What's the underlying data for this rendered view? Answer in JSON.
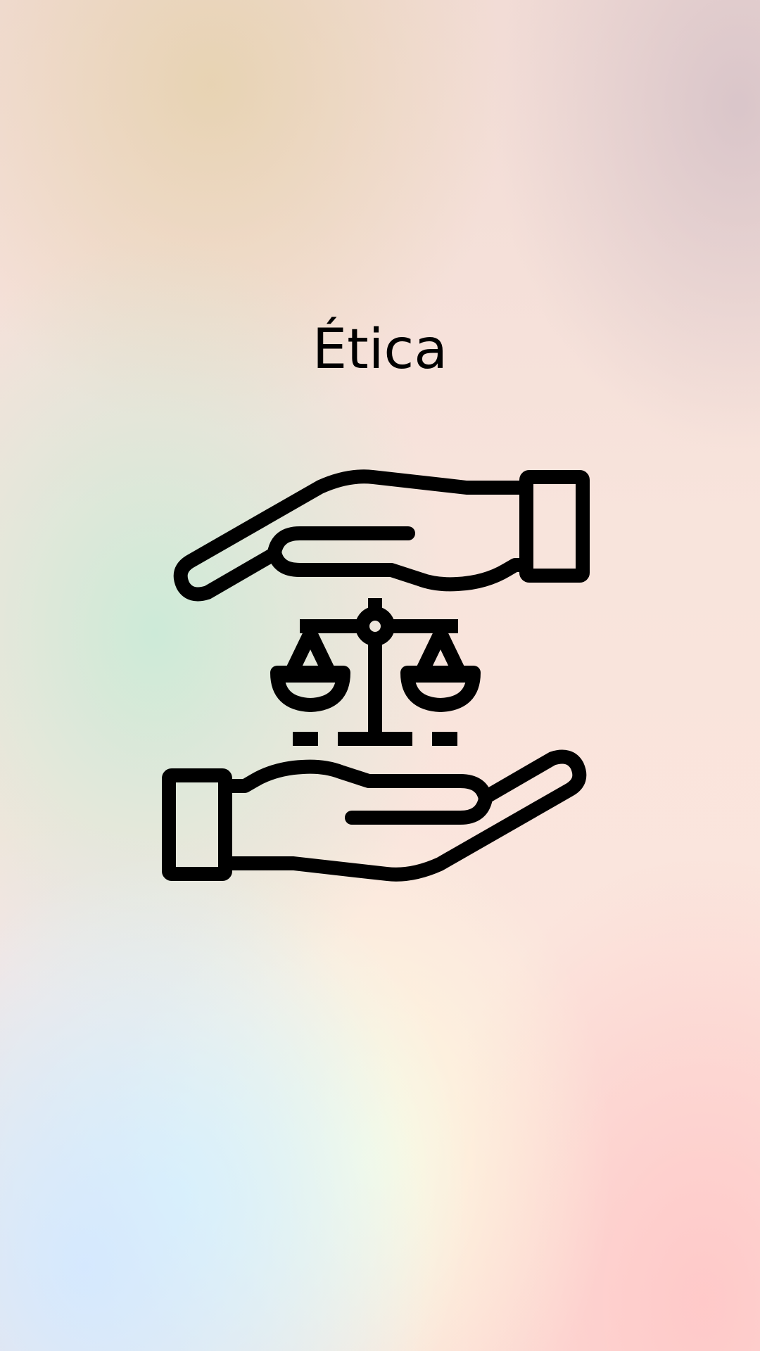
{
  "screen": {
    "title": "Ética"
  },
  "illustration": {
    "icon": "hands-with-balance-scale-icon",
    "stroke_color": "#000000"
  }
}
